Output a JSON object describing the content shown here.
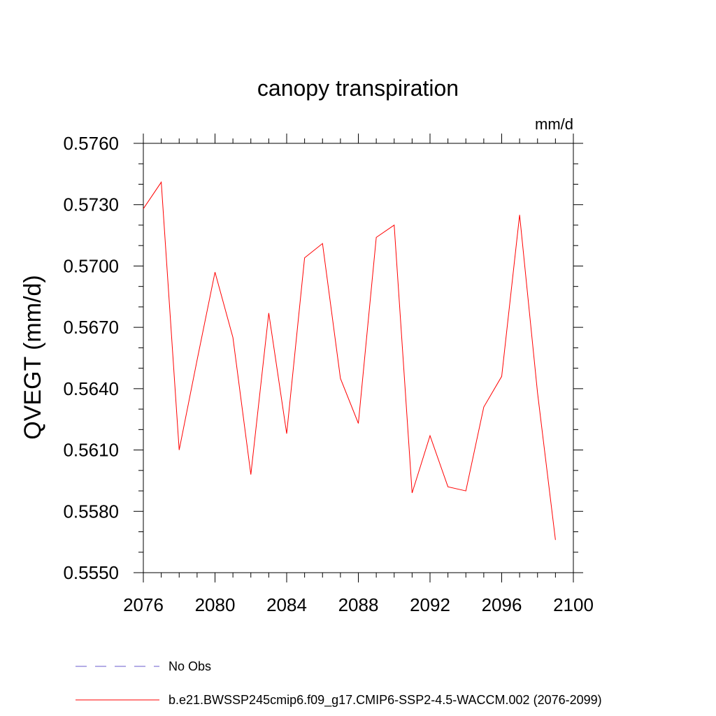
{
  "chart_data": {
    "type": "line",
    "title": "canopy transpiration",
    "units": "mm/d",
    "ylabel": "QVEGT  (mm/d)",
    "xlim": [
      2076,
      2100
    ],
    "ylim": [
      0.555,
      0.576
    ],
    "xticks": [
      2076,
      2080,
      2084,
      2088,
      2092,
      2096,
      2100
    ],
    "xtick_labels": [
      "2076",
      "2080",
      "2084",
      "2088",
      "2092",
      "2096",
      "2100"
    ],
    "yticks": [
      0.555,
      0.558,
      0.561,
      0.564,
      0.567,
      0.57,
      0.573,
      0.576
    ],
    "ytick_labels": [
      "0.5550",
      "0.5580",
      "0.5610",
      "0.5640",
      "0.5670",
      "0.5700",
      "0.5730",
      "0.5760"
    ],
    "x": [
      2076,
      2077,
      2078,
      2079,
      2080,
      2081,
      2082,
      2083,
      2084,
      2085,
      2086,
      2087,
      2088,
      2089,
      2090,
      2091,
      2092,
      2093,
      2094,
      2095,
      2096,
      2097,
      2098,
      2099
    ],
    "series": [
      {
        "name": "b.e21.BWSSP245cmip6.f09_g17.CMIP6-SSP2-4.5-WACCM.002 (2076-2099)",
        "color": "#ff0000",
        "values": [
          0.5728,
          0.5741,
          0.561,
          0.5654,
          0.5697,
          0.5665,
          0.5598,
          0.5677,
          0.5618,
          0.5704,
          0.5711,
          0.5645,
          0.5623,
          0.5714,
          0.572,
          0.5589,
          0.5617,
          0.5592,
          0.559,
          0.5631,
          0.5646,
          0.5725,
          0.5638,
          0.5566
        ]
      }
    ],
    "legend": {
      "placement": "bottom",
      "entries": [
        {
          "label": "No Obs",
          "color": "#6a5acd",
          "style": "dashed"
        },
        {
          "label": "b.e21.BWSSP245cmip6.f09_g17.CMIP6-SSP2-4.5-WACCM.002 (2076-2099)",
          "color": "#ff0000",
          "style": "solid"
        }
      ]
    }
  }
}
